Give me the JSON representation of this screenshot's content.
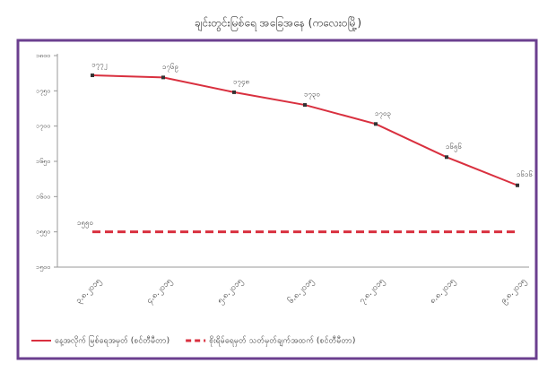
{
  "chart_data": {
    "type": "line",
    "title": "ချင်းတွင်းမြစ်ရေ အခြေအနေ (ကလေးဝမြို့)",
    "categories": [
      "၃.၈.၂၀၁၅",
      "၄.၈.၂၀၁၅",
      "၅.၈.၂၀၁၅",
      "၆.၈.၂၀၁၅",
      "၇.၈.၂၀၁၅",
      "၈.၈.၂၀၁၅",
      "၉.၈.၂၀၁၅"
    ],
    "series": [
      {
        "name": "နေ့အလိုက် မြစ်ရေအမှတ် (စင်တီမီတာ)",
        "color": "#d9303f",
        "dashed": false,
        "values": [
          1772,
          1769,
          1748,
          1730,
          1703,
          1656,
          1616
        ],
        "value_labels": [
          "၁၇၇၂",
          "၁၇၆၉",
          "၁၇၄၈",
          "၁၇၃၀",
          "၁၇၀၃",
          "၁၆၅၆",
          "၁၆၁၆"
        ]
      },
      {
        "name": "စိုးရိမ်ရေမှတ် သတ်မှတ်ချက်အထက် (စင်တီမီတာ)",
        "color": "#d9303f",
        "dashed": true,
        "values": [
          1550,
          1550,
          1550,
          1550,
          1550,
          1550,
          1550
        ]
      }
    ],
    "annotation": {
      "text": "၁၅၅၀",
      "value": 1550
    },
    "ylim": [
      1500,
      1800
    ],
    "yticks": [
      {
        "value": 1500,
        "label": "၁၅၀၀"
      },
      {
        "value": 1550,
        "label": "၁၅၅၀"
      },
      {
        "value": 1600,
        "label": "၁၆၀၀"
      },
      {
        "value": 1650,
        "label": "၁၆၅၀"
      },
      {
        "value": 1700,
        "label": "၁၇၀၀"
      },
      {
        "value": 1750,
        "label": "၁၇၅၀"
      },
      {
        "value": 1800,
        "label": "၁၈၀၀"
      }
    ],
    "grid": false
  }
}
